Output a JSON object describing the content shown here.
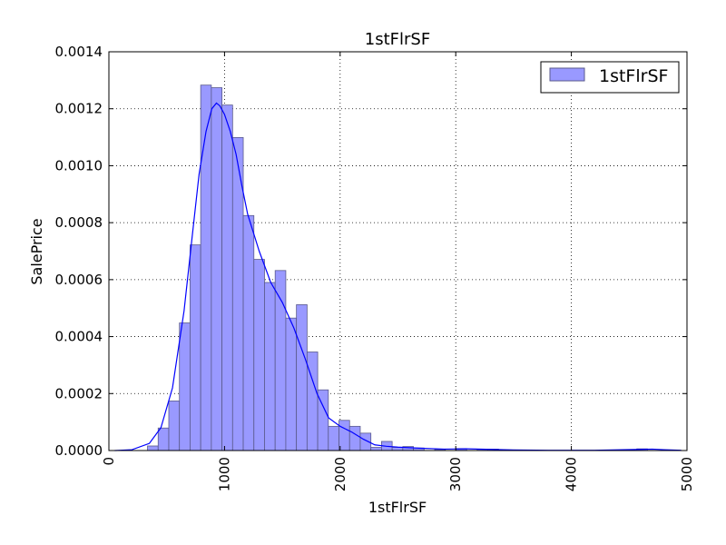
{
  "chart_data": {
    "type": "bar",
    "title": "1stFlrSF",
    "xlabel": "1stFlrSF",
    "ylabel": "SalePrice",
    "xlim": [
      0,
      5000
    ],
    "ylim": [
      0,
      0.0014
    ],
    "grid": true,
    "legend": {
      "placement": "top-right",
      "entries": [
        "1stFlrSF"
      ]
    },
    "colors": {
      "bar_fill": "#9999ff",
      "bar_edge": "#5a5a8c",
      "kde_line": "#0000ff"
    },
    "x_ticks": [
      0,
      1000,
      2000,
      3000,
      4000,
      5000
    ],
    "x_tick_labels": [
      "0",
      "1000",
      "2000",
      "3000",
      "4000",
      "5000"
    ],
    "y_ticks": [
      0,
      0.0002,
      0.0004,
      0.0006,
      0.0008,
      0.001,
      0.0012,
      0.0014
    ],
    "y_tick_labels": [
      "0.0000",
      "0.0002",
      "0.0004",
      "0.0006",
      "0.0008",
      "0.0010",
      "0.0012",
      "0.0014"
    ],
    "histogram": {
      "series_name": "1stFlrSF",
      "bin_width": 92,
      "bin_edges_start": 334,
      "values": [
        1.6e-05,
        7.9e-05,
        0.000174,
        0.000448,
        0.000722,
        0.001283,
        0.001274,
        0.001213,
        0.001099,
        0.000825,
        0.000671,
        0.00059,
        0.000632,
        0.000465,
        0.000512,
        0.000346,
        0.000213,
        8.5e-05,
        0.000106,
        8.5e-05,
        6.1e-05,
        1.1e-05,
        3.2e-05,
        1.1e-05,
        1.4e-05,
        9e-06,
        0.0,
        4e-06,
        0.0,
        7e-06,
        0.0,
        5e-06,
        5e-06,
        2e-06,
        0.0,
        0.0,
        0.0,
        0.0,
        0.0,
        0.0,
        0.0,
        0.0,
        0.0,
        0.0,
        0.0,
        0.0,
        6e-06,
        0.0
      ]
    },
    "kde": {
      "name": "1stFlrSF",
      "x": [
        50,
        200,
        350,
        450,
        550,
        650,
        720,
        780,
        840,
        890,
        930,
        960,
        1000,
        1050,
        1100,
        1150,
        1200,
        1300,
        1400,
        1500,
        1600,
        1700,
        1800,
        1900,
        2000,
        2100,
        2200,
        2300,
        2400,
        2500,
        2700,
        2900,
        3100,
        3300,
        3500,
        3800,
        4200,
        4600,
        4700,
        4800,
        4950
      ],
      "y": [
        0.0,
        3e-06,
        2.5e-05,
        8e-05,
        0.00022,
        0.00049,
        0.00075,
        0.00097,
        0.00112,
        0.0012,
        0.00122,
        0.00121,
        0.00118,
        0.00112,
        0.00104,
        0.00093,
        0.00083,
        0.0007,
        0.00059,
        0.00052,
        0.00043,
        0.00032,
        0.0002,
        0.000115,
        8.5e-05,
        6.5e-05,
        4e-05,
        2e-05,
        1.5e-05,
        1.2e-05,
        8e-06,
        5e-06,
        6e-06,
        4e-06,
        2e-06,
        1e-06,
        1e-06,
        4e-06,
        5e-06,
        3e-06,
        1e-06
      ]
    }
  }
}
